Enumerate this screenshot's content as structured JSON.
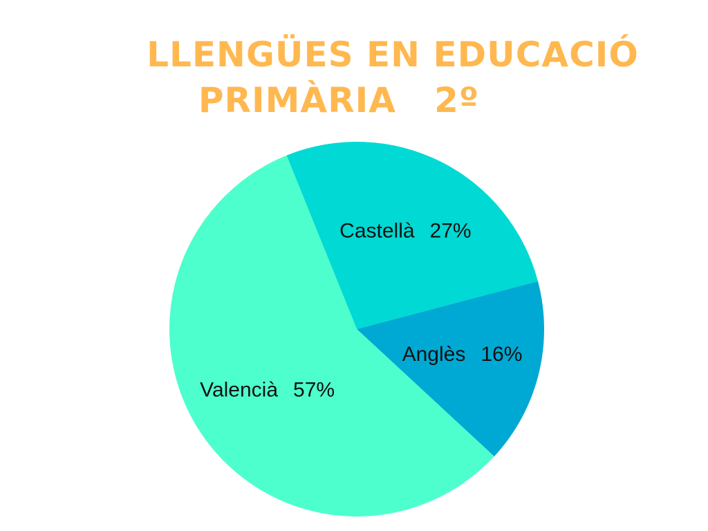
{
  "chart_data": {
    "type": "pie",
    "title": [
      "LLENGÜES EN EDUCACIÓ",
      "PRIMÀRIA   2º"
    ],
    "categories": [
      "Castellà",
      "Anglès",
      "Valencià"
    ],
    "values": [
      27,
      16,
      57
    ],
    "value_labels": [
      "27%",
      "16%",
      "57%"
    ],
    "colors": [
      "#00d9d4",
      "#00a9d4",
      "#4dffcc"
    ]
  }
}
